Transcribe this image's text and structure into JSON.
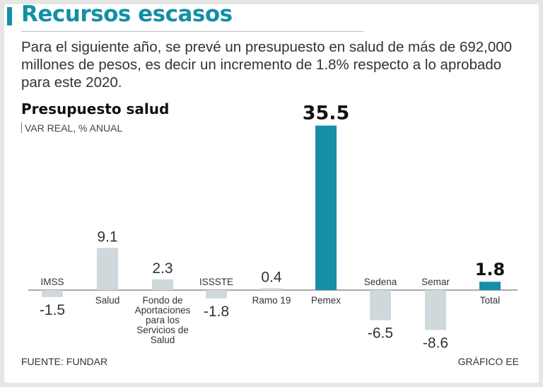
{
  "header": {
    "title": "Recursos escasos",
    "intro": "Para el siguiente año, se prevé un presupuesto en salud de más de 692,000 millones de pesos, es decir un incremento de 1.8% respecto a lo aprobado para este 2020."
  },
  "colors": {
    "accent": "#158fa6",
    "bar_gray": "#cfd8db",
    "text": "#333333"
  },
  "chart_data": {
    "type": "bar",
    "title": "Presupuesto salud",
    "subtitle": "VAR REAL, % ANUAL",
    "categories": [
      "IMSS",
      "Salud",
      "Fondo de Aportaciones para los Servicios de Salud",
      "ISSSTE",
      "Ramo 19",
      "Pemex",
      "Sedena",
      "Semar",
      "Total"
    ],
    "category_lines": [
      [
        "IMSS"
      ],
      [
        "Salud"
      ],
      [
        "Fondo de",
        "Aportaciones",
        "para los",
        "Servicios de",
        "Salud"
      ],
      [
        "ISSSTE"
      ],
      [
        "Ramo 19"
      ],
      [
        "Pemex"
      ],
      [
        "Sedena"
      ],
      [
        "Semar"
      ],
      [
        "Total"
      ]
    ],
    "values": [
      -1.5,
      9.1,
      2.3,
      -1.8,
      0.4,
      35.5,
      -6.5,
      -8.6,
      1.8
    ],
    "value_labels": [
      "-1.5",
      "9.1",
      "2.3",
      "-1.8",
      "0.4",
      "35.5",
      "-6.5",
      "-8.6",
      "1.8"
    ],
    "highlighted": [
      "Pemex",
      "Total"
    ],
    "ylabel": "",
    "xlabel": ""
  },
  "footer": {
    "source": "FUENTE: FUNDAR",
    "credit": "GRÁFICO EE"
  }
}
